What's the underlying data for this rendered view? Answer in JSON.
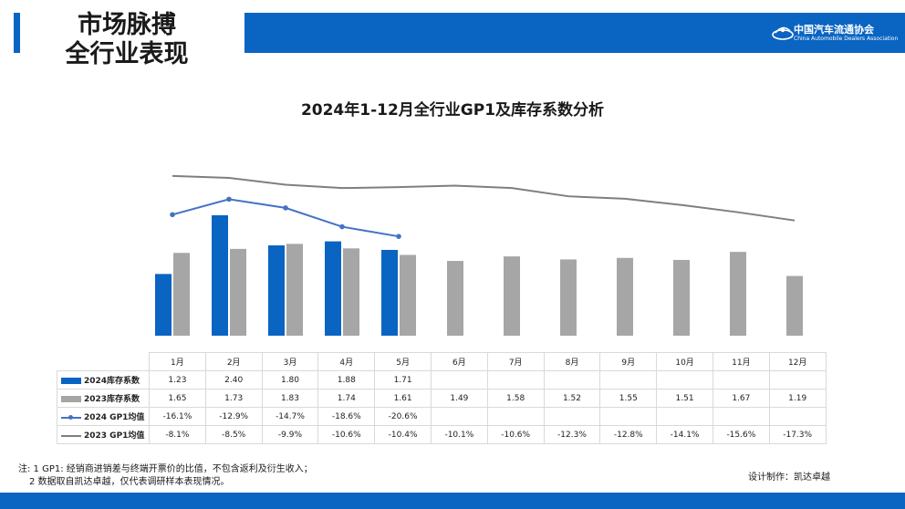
{
  "header": {
    "title_line1": "市场脉搏",
    "title_line2": "全行业表现"
  },
  "logo": {
    "name_cn": "中国汽车流通协会",
    "name_en": "China Automobile Dealers Association"
  },
  "colors": {
    "accent": "#0a64c2",
    "bar_2024": "#0a64c2",
    "bar_2023": "#a6a6a6",
    "line_2024": "#4472c4",
    "line_2023": "#7f7f7f"
  },
  "chart_data": {
    "type": "bar",
    "title": "2024年1-12月全行业GP1及库存系数分析",
    "categories": [
      "1月",
      "2月",
      "3月",
      "4月",
      "5月",
      "6月",
      "7月",
      "8月",
      "9月",
      "10月",
      "11月",
      "12月"
    ],
    "series": [
      {
        "name": "2024库存系数",
        "kind": "bar",
        "values": [
          1.23,
          2.4,
          1.8,
          1.88,
          1.71,
          null,
          null,
          null,
          null,
          null,
          null,
          null
        ],
        "labels": [
          "1.23",
          "2.40",
          "1.80",
          "1.88",
          "1.71",
          "",
          "",
          "",
          "",
          "",
          "",
          ""
        ]
      },
      {
        "name": "2023库存系数",
        "kind": "bar",
        "values": [
          1.65,
          1.73,
          1.83,
          1.74,
          1.61,
          1.49,
          1.58,
          1.52,
          1.55,
          1.51,
          1.67,
          1.19
        ],
        "labels": [
          "1.65",
          "1.73",
          "1.83",
          "1.74",
          "1.61",
          "1.49",
          "1.58",
          "1.52",
          "1.55",
          "1.51",
          "1.67",
          "1.19"
        ]
      },
      {
        "name": "2024 GP1均值",
        "kind": "line",
        "values": [
          -16.1,
          -12.9,
          -14.7,
          -18.6,
          -20.6,
          null,
          null,
          null,
          null,
          null,
          null,
          null
        ],
        "labels": [
          "-16.1%",
          "-12.9%",
          "-14.7%",
          "-18.6%",
          "-20.6%",
          "",
          "",
          "",
          "",
          "",
          "",
          ""
        ]
      },
      {
        "name": "2023 GP1均值",
        "kind": "line",
        "values": [
          -8.1,
          -8.5,
          -9.9,
          -10.6,
          -10.4,
          -10.1,
          -10.6,
          -12.3,
          -12.8,
          -14.1,
          -15.6,
          -17.3
        ],
        "labels": [
          "-8.1%",
          "-8.5%",
          "-9.9%",
          "-10.6%",
          "-10.4%",
          "-10.1%",
          "-10.6%",
          "-12.3%",
          "-12.8%",
          "-14.1%",
          "-15.6%",
          "-17.3%"
        ]
      }
    ],
    "legend": "bottom data table"
  },
  "footnote": {
    "line1": "注: 1 GP1: 经销商进销差与终端开票价的比值，不包含返利及衍生收入；",
    "line2": "2 数据取自凯达卓越，仅代表调研样本表现情况。"
  },
  "design_credit": "设计制作：凯达卓越"
}
